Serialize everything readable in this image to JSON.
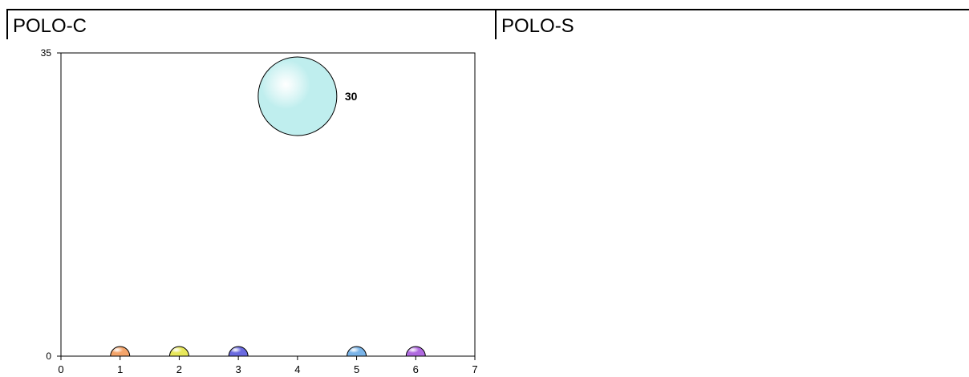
{
  "panels": {
    "left_title": "POLO-C",
    "right_title": "POLO-S"
  },
  "chart_data": {
    "type": "bubble",
    "title": "",
    "xlabel": "",
    "ylabel": "",
    "xlim": [
      0,
      7
    ],
    "ylim": [
      0,
      35
    ],
    "x_ticks": [
      0,
      1,
      2,
      3,
      4,
      5,
      6,
      7
    ],
    "y_ticks": [
      0,
      35
    ],
    "grid": false,
    "legend": "none",
    "points": [
      {
        "x": 1,
        "y": 0,
        "size": 0,
        "color": "#f4a46a"
      },
      {
        "x": 2,
        "y": 0,
        "size": 0,
        "color": "#e8e85a"
      },
      {
        "x": 3,
        "y": 0,
        "size": 0,
        "color": "#6a6ae0"
      },
      {
        "x": 4,
        "y": 30,
        "size": 30,
        "color": "#bfeeee",
        "label": "30"
      },
      {
        "x": 5,
        "y": 0,
        "size": 0,
        "color": "#7ab4e8"
      },
      {
        "x": 6,
        "y": 0,
        "size": 0,
        "color": "#b06ae0"
      }
    ]
  }
}
